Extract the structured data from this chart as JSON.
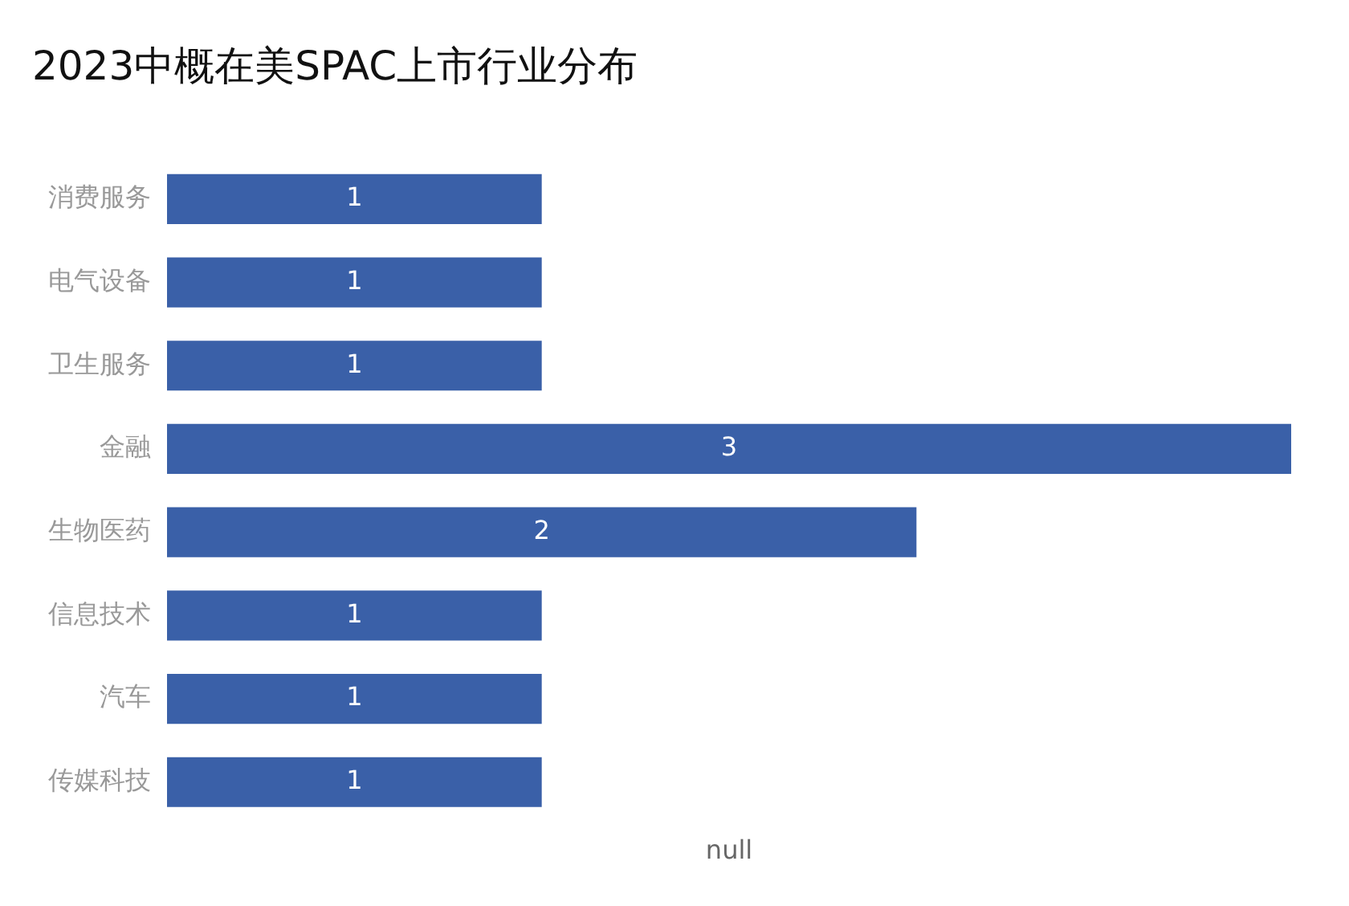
{
  "chart_data": {
    "type": "bar",
    "orientation": "horizontal",
    "title": "2023中概在美SPAC上市行业分布",
    "xlabel": "null",
    "categories": [
      "消费服务",
      "电气设备",
      "卫生服务",
      "金融",
      "生物医药",
      "信息技术",
      "汽车",
      "传媒科技"
    ],
    "values": [
      1,
      1,
      1,
      3,
      2,
      1,
      1,
      1
    ],
    "color": "#3a60a8",
    "data_labels": true,
    "grid": false,
    "legend": false
  }
}
